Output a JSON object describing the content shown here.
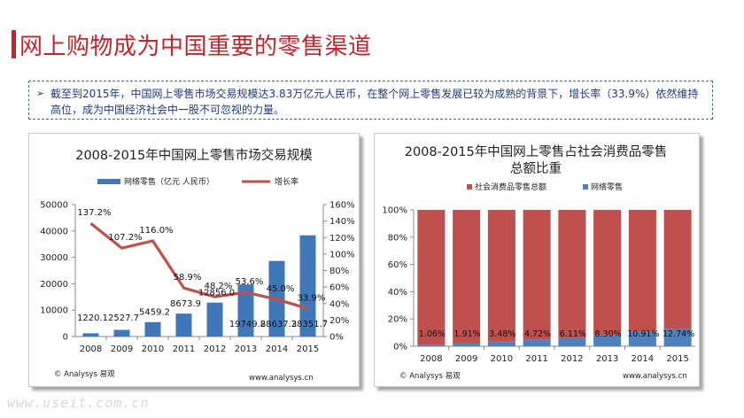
{
  "page": {
    "title": "网上购物成为中国重要的零售渠道",
    "note_bullet": "➢",
    "note": "截至到2015年，中国网上零售市场交易规模达3.83万亿元人民币，在整个网上零售发展已较为成熟的背景下，增长率（33.9%）依然维持高位，成为中国经济社会中一股不可忽视的力量。",
    "watermark": "www.useit.com.cn"
  },
  "colors": {
    "accent_red": "#c0262d",
    "bar_blue": "#3f77b8",
    "line_red": "#c0504d",
    "stack_red": "#c0504d",
    "stack_blue": "#4f81bd"
  },
  "chart_data": [
    {
      "type": "bar",
      "title": "2008-2015年中国网上零售市场交易规模",
      "categories": [
        "2008",
        "2009",
        "2010",
        "2011",
        "2012",
        "2013",
        "2014",
        "2015"
      ],
      "series": [
        {
          "name": "网络零售（亿元 人民币）",
          "kind": "bar",
          "axis": "left",
          "values": [
            1220.1,
            2527.7,
            5459.2,
            8673.9,
            12856.0,
            19749.8,
            28637.2,
            38351.7
          ],
          "labels": [
            "1220.1",
            "2527.7",
            "5459.2",
            "8673.9",
            "12856.0",
            "19749.8",
            "28637.2",
            "38351.7"
          ]
        },
        {
          "name": "增长率",
          "kind": "line",
          "axis": "right",
          "values": [
            137.2,
            107.2,
            116.0,
            58.9,
            48.2,
            53.6,
            45.0,
            33.9
          ],
          "labels": [
            "137.2%",
            "107.2%",
            "116.0%",
            "58.9%",
            "48.2%",
            "53.6%",
            "45.0%",
            "33.9%"
          ]
        }
      ],
      "ylim": [
        0,
        50000
      ],
      "yticks": [
        "0",
        "10000",
        "20000",
        "30000",
        "40000",
        "50000"
      ],
      "y2lim": [
        0,
        160
      ],
      "y2ticks": [
        "0%",
        "20%",
        "40%",
        "60%",
        "80%",
        "100%",
        "120%",
        "140%",
        "160%"
      ],
      "legend": "top",
      "grid": false,
      "source": "© Analysys 易观",
      "website": "www.analysys.cn"
    },
    {
      "type": "bar",
      "stacked": true,
      "title": "2008-2015年中国网上零售占社会消费品零售总额比重",
      "title_lines": [
        "2008-2015年中国网上零售占社会消费品零售",
        "总额比重"
      ],
      "categories": [
        "2008",
        "2009",
        "2010",
        "2011",
        "2012",
        "2013",
        "2014",
        "2015"
      ],
      "series": [
        {
          "name": "社会消费品零售总额",
          "values": [
            98.94,
            98.09,
            96.52,
            95.28,
            93.89,
            91.7,
            89.09,
            87.26
          ]
        },
        {
          "name": "网络零售",
          "values": [
            1.06,
            1.91,
            3.48,
            4.72,
            6.11,
            8.3,
            10.91,
            12.74
          ],
          "labels": [
            "1.06%",
            "1.91%",
            "3.48%",
            "4.72%",
            "6.11%",
            "8.30%",
            "10.91%",
            "12.74%"
          ]
        }
      ],
      "ylim": [
        0,
        100
      ],
      "yticks": [
        "0%",
        "20%",
        "40%",
        "60%",
        "80%",
        "100%"
      ],
      "legend": "top",
      "grid": false,
      "source": "© Analysys 易观",
      "website": "www.analysys.cn"
    }
  ]
}
